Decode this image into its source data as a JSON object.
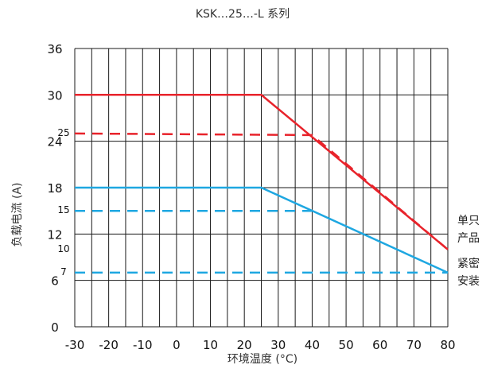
{
  "chart_data": {
    "type": "line",
    "title": "KSK…25…-L 系列",
    "xlabel": "环境温度 (°C)",
    "ylabel": "负载电流 (A)",
    "xlim": [
      -30,
      80
    ],
    "ylim": [
      0,
      36
    ],
    "x_ticks": [
      -30,
      -20,
      -10,
      0,
      10,
      20,
      30,
      40,
      50,
      60,
      70,
      80
    ],
    "x_tick_labels": [
      "-30",
      "-20",
      "-10",
      "0",
      "10",
      "20",
      "30",
      "40",
      "50",
      "60",
      "70",
      "80"
    ],
    "y_ticks": [
      0,
      6,
      12,
      18,
      24,
      30,
      36
    ],
    "y_tick_labels": [
      "0",
      "6",
      "12",
      "18",
      "24",
      "30",
      "36"
    ],
    "y_extra_ticks": [
      7,
      10,
      15,
      25
    ],
    "y_extra_tick_labels": [
      "7",
      "10",
      "15",
      "25"
    ],
    "grid": true,
    "series": [
      {
        "style": "solid",
        "color": "#e8232b",
        "x": [
          -30,
          25,
          80
        ],
        "y": [
          30,
          30,
          10
        ]
      },
      {
        "style": "dashed",
        "color": "#e8232b",
        "x": [
          -30,
          40,
          80
        ],
        "y": [
          25,
          24.8,
          10
        ]
      },
      {
        "style": "solid",
        "color": "#1ea7e1",
        "x": [
          -30,
          25,
          80
        ],
        "y": [
          18,
          18,
          7
        ]
      },
      {
        "style": "dashed",
        "color": "#1ea7e1",
        "x": [
          -30,
          40
        ],
        "y": [
          15,
          15
        ]
      },
      {
        "style": "dashed",
        "color": "#1ea7e1",
        "x": [
          -30,
          80
        ],
        "y": [
          7,
          7
        ]
      }
    ],
    "legend": {
      "placement": "right",
      "entries": [
        {
          "lines": [
            "单只",
            "产品"
          ]
        },
        {
          "lines": [
            "紧密",
            "安装"
          ]
        }
      ]
    }
  }
}
